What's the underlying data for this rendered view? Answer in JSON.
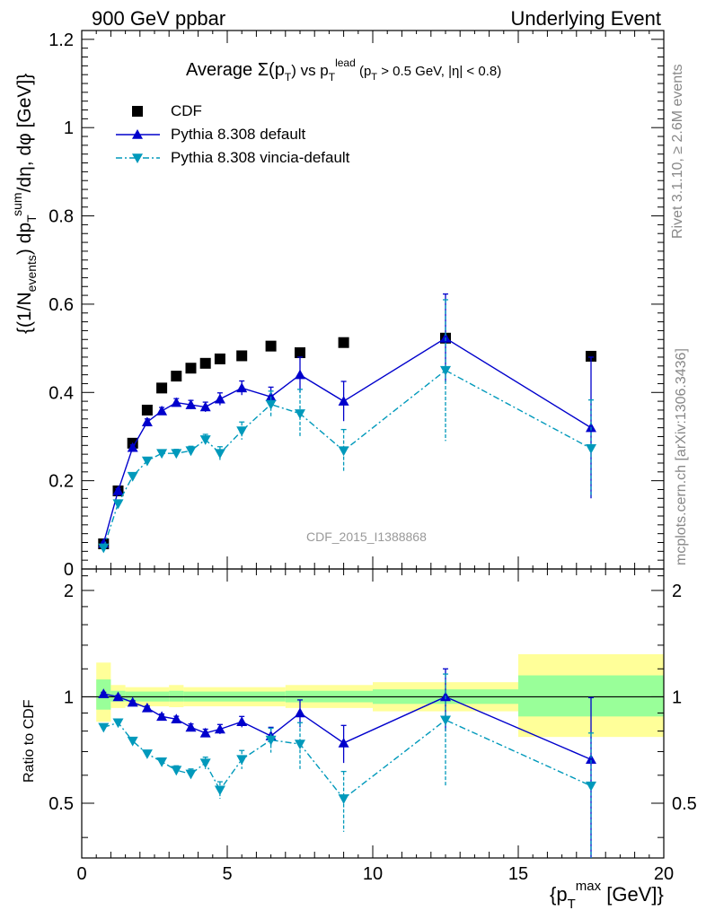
{
  "header": {
    "left": "900 GeV ppbar",
    "right": "Underlying Event"
  },
  "side_labels": {
    "rivet": "Rivet 3.1.10, ≥ 2.6M events",
    "mcplots": "mcplots.cern.ch [arXiv:1306.3436]"
  },
  "watermark": "CDF_2015_I1388868",
  "chart_data": [
    {
      "type": "scatter",
      "panel": "main",
      "title": "Average Σ(pT) vs pT lead (pT > 0.5 GeV, |η| < 0.8)",
      "ylabel": "{(1/Nevents) dpTsum/dη, dφ [GeV]}",
      "xlim": [
        0,
        20
      ],
      "ylim": [
        0,
        1.22
      ],
      "yticks": [
        0,
        0.2,
        0.4,
        0.6,
        0.8,
        1,
        1.2
      ],
      "ytick_labels": [
        "0",
        "0.2",
        "0.4",
        "0.6",
        "0.8",
        "1",
        "1.2"
      ],
      "legend": {
        "position": "top-left",
        "entries": [
          "CDF",
          "Pythia 8.308 default",
          "Pythia 8.308 vincia-default"
        ]
      },
      "series": [
        {
          "name": "CDF",
          "color": "#000000",
          "marker": "square",
          "x": [
            0.75,
            1.25,
            1.75,
            2.25,
            2.75,
            3.25,
            3.75,
            4.25,
            4.75,
            5.5,
            6.5,
            7.5,
            9,
            12.5,
            17.5
          ],
          "y": [
            0.057,
            0.177,
            0.285,
            0.36,
            0.41,
            0.437,
            0.455,
            0.466,
            0.476,
            0.483,
            0.505,
            0.49,
            0.513,
            0.523,
            0.482
          ],
          "yerr": [
            0,
            0,
            0,
            0,
            0,
            0,
            0,
            0,
            0,
            0,
            0,
            0,
            0,
            0,
            0
          ]
        },
        {
          "name": "Pythia 8.308 default",
          "color": "#0000cc",
          "marker": "triangle-up",
          "line": "solid",
          "x": [
            0.75,
            1.25,
            1.75,
            2.25,
            2.75,
            3.25,
            3.75,
            4.25,
            4.75,
            5.5,
            6.5,
            7.5,
            9,
            12.5,
            17.5
          ],
          "y": [
            0.058,
            0.177,
            0.275,
            0.333,
            0.358,
            0.377,
            0.372,
            0.367,
            0.385,
            0.41,
            0.39,
            0.44,
            0.38,
            0.523,
            0.32
          ],
          "yerr": [
            0.003,
            0.005,
            0.006,
            0.007,
            0.008,
            0.009,
            0.01,
            0.011,
            0.014,
            0.016,
            0.022,
            0.04,
            0.045,
            0.1,
            0.16
          ]
        },
        {
          "name": "Pythia 8.308 vincia-default",
          "color": "#0099bb",
          "marker": "triangle-down",
          "line": "dashdot",
          "x": [
            0.75,
            1.25,
            1.75,
            2.25,
            2.75,
            3.25,
            3.75,
            4.25,
            4.75,
            5.5,
            6.5,
            7.5,
            9,
            12.5,
            17.5
          ],
          "y": [
            0.048,
            0.148,
            0.21,
            0.245,
            0.262,
            0.262,
            0.268,
            0.293,
            0.262,
            0.313,
            0.373,
            0.352,
            0.268,
            0.45,
            0.273
          ],
          "yerr": [
            0.003,
            0.005,
            0.006,
            0.007,
            0.008,
            0.009,
            0.01,
            0.012,
            0.015,
            0.02,
            0.03,
            0.055,
            0.048,
            0.16,
            0.11
          ]
        }
      ]
    },
    {
      "type": "scatter",
      "panel": "ratio",
      "ylabel": "Ratio to CDF",
      "xlabel": "{pTmax [GeV]}",
      "xlim": [
        0,
        20
      ],
      "ylim": [
        0.35,
        2.3
      ],
      "log_y": true,
      "xticks": [
        0,
        5,
        10,
        15,
        20
      ],
      "xtick_labels": [
        "0",
        "5",
        "10",
        "15",
        "20"
      ],
      "yticks": [
        0.5,
        1,
        2
      ],
      "ytick_labels": [
        "0.5",
        "1",
        "2"
      ],
      "bands": [
        {
          "x0": 0.5,
          "x1": 1.0,
          "inner": [
            0.92,
            1.12
          ],
          "outer": [
            0.85,
            1.25
          ]
        },
        {
          "x0": 1.0,
          "x1": 1.5,
          "inner": [
            0.97,
            1.04
          ],
          "outer": [
            0.93,
            1.08
          ]
        },
        {
          "x0": 1.5,
          "x1": 3.0,
          "inner": [
            0.97,
            1.035
          ],
          "outer": [
            0.94,
            1.065
          ]
        },
        {
          "x0": 3.0,
          "x1": 3.5,
          "inner": [
            0.97,
            1.04
          ],
          "outer": [
            0.935,
            1.08
          ]
        },
        {
          "x0": 3.5,
          "x1": 7.0,
          "inner": [
            0.97,
            1.035
          ],
          "outer": [
            0.94,
            1.065
          ]
        },
        {
          "x0": 7.0,
          "x1": 10.0,
          "inner": [
            0.965,
            1.04
          ],
          "outer": [
            0.93,
            1.08
          ]
        },
        {
          "x0": 10.0,
          "x1": 15.0,
          "inner": [
            0.955,
            1.05
          ],
          "outer": [
            0.91,
            1.1
          ]
        },
        {
          "x0": 15.0,
          "x1": 20.0,
          "inner": [
            0.88,
            1.15
          ],
          "outer": [
            0.77,
            1.32
          ]
        }
      ],
      "series": [
        {
          "name": "Pythia 8.308 default",
          "color": "#0000cc",
          "marker": "triangle-up",
          "line": "solid",
          "x": [
            0.75,
            1.25,
            1.75,
            2.25,
            2.75,
            3.25,
            3.75,
            4.25,
            4.75,
            5.5,
            6.5,
            7.5,
            9,
            12.5,
            17.5
          ],
          "y": [
            1.02,
            1.0,
            0.965,
            0.93,
            0.88,
            0.865,
            0.82,
            0.79,
            0.81,
            0.85,
            0.775,
            0.9,
            0.74,
            1.0,
            0.665
          ],
          "yerr": [
            0.01,
            0.01,
            0.01,
            0.012,
            0.014,
            0.016,
            0.018,
            0.02,
            0.025,
            0.03,
            0.045,
            0.08,
            0.09,
            0.2,
            0.33
          ]
        },
        {
          "name": "Pythia 8.308 vincia-default",
          "color": "#0099bb",
          "marker": "triangle-down",
          "line": "dashdot",
          "x": [
            0.75,
            1.25,
            1.75,
            2.25,
            2.75,
            3.25,
            3.75,
            4.25,
            4.75,
            5.5,
            6.5,
            7.5,
            9,
            12.5,
            17.5
          ],
          "y": [
            0.82,
            0.845,
            0.75,
            0.69,
            0.655,
            0.62,
            0.605,
            0.65,
            0.545,
            0.665,
            0.755,
            0.735,
            0.515,
            0.86,
            0.56
          ],
          "yerr": [
            0.01,
            0.01,
            0.012,
            0.015,
            0.016,
            0.018,
            0.02,
            0.025,
            0.03,
            0.04,
            0.06,
            0.11,
            0.1,
            0.3,
            0.23
          ]
        }
      ]
    }
  ]
}
